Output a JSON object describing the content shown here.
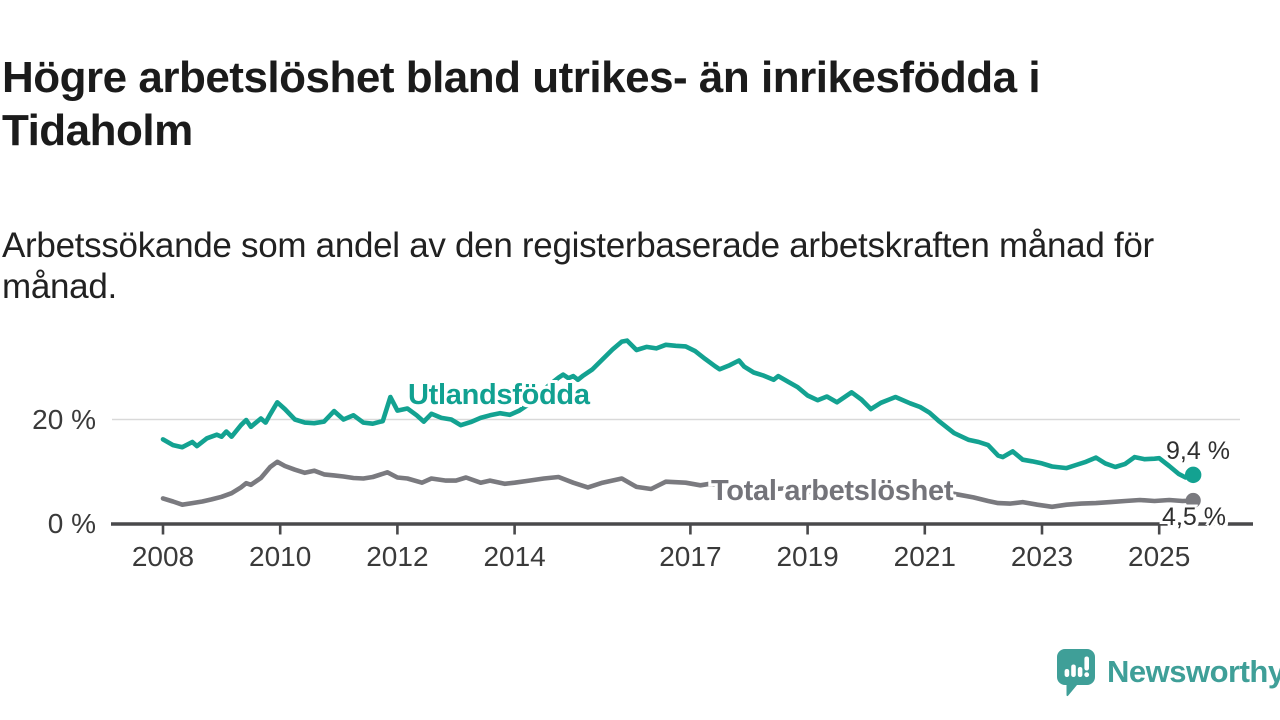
{
  "header": {
    "title": "Högre arbetslöshet bland utrikes- än inrikesfödda i Tidaholm",
    "subtitle": "Arbetssökande som andel av den registerbaserade arbetskraften månad för månad."
  },
  "chart_data": {
    "type": "line",
    "unit": "%",
    "grid": "horizontal line at 20% only",
    "legend_position": "inline labels on lines",
    "x_axis": {
      "ticks": [
        2008,
        2010,
        2012,
        2014,
        2017,
        2019,
        2021,
        2023,
        2025
      ],
      "range": [
        2007.1,
        2026.6
      ]
    },
    "y_axis": {
      "ticks": [
        {
          "value": 0,
          "label": "0 %"
        },
        {
          "value": 20,
          "label": "20 %"
        }
      ],
      "range": [
        0,
        40
      ]
    },
    "axis_color": "#49494b",
    "grid_color": "#d9d9d9",
    "series": [
      {
        "name": "Utlandsfödda",
        "color": "#13a291",
        "end_label": "9,4 %",
        "end_value": 9.4,
        "points": [
          [
            2008.0,
            16.2
          ],
          [
            2008.17,
            15.1
          ],
          [
            2008.33,
            14.7
          ],
          [
            2008.5,
            15.7
          ],
          [
            2008.58,
            14.9
          ],
          [
            2008.75,
            16.4
          ],
          [
            2008.92,
            17.1
          ],
          [
            2009.0,
            16.7
          ],
          [
            2009.08,
            17.7
          ],
          [
            2009.17,
            16.7
          ],
          [
            2009.33,
            18.9
          ],
          [
            2009.42,
            19.9
          ],
          [
            2009.5,
            18.6
          ],
          [
            2009.67,
            20.2
          ],
          [
            2009.75,
            19.4
          ],
          [
            2009.83,
            21.0
          ],
          [
            2009.95,
            23.3
          ],
          [
            2010.08,
            22.0
          ],
          [
            2010.25,
            20.0
          ],
          [
            2010.42,
            19.4
          ],
          [
            2010.58,
            19.3
          ],
          [
            2010.75,
            19.6
          ],
          [
            2010.92,
            21.6
          ],
          [
            2011.08,
            20.0
          ],
          [
            2011.25,
            20.8
          ],
          [
            2011.42,
            19.4
          ],
          [
            2011.58,
            19.2
          ],
          [
            2011.75,
            19.7
          ],
          [
            2011.88,
            24.3
          ],
          [
            2012.0,
            21.7
          ],
          [
            2012.17,
            22.1
          ],
          [
            2012.33,
            20.8
          ],
          [
            2012.45,
            19.6
          ],
          [
            2012.58,
            21.1
          ],
          [
            2012.75,
            20.3
          ],
          [
            2012.92,
            20.0
          ],
          [
            2013.08,
            18.9
          ],
          [
            2013.25,
            19.5
          ],
          [
            2013.42,
            20.3
          ],
          [
            2013.58,
            20.8
          ],
          [
            2013.75,
            21.2
          ],
          [
            2013.92,
            20.9
          ],
          [
            2014.08,
            21.7
          ],
          [
            2014.25,
            23.0
          ],
          [
            2014.42,
            24.8
          ],
          [
            2014.58,
            26.5
          ],
          [
            2014.75,
            28.0
          ],
          [
            2014.83,
            28.6
          ],
          [
            2014.92,
            27.9
          ],
          [
            2015.0,
            28.3
          ],
          [
            2015.08,
            27.6
          ],
          [
            2015.17,
            28.4
          ],
          [
            2015.33,
            29.6
          ],
          [
            2015.5,
            31.5
          ],
          [
            2015.67,
            33.4
          ],
          [
            2015.83,
            34.9
          ],
          [
            2015.92,
            35.1
          ],
          [
            2016.08,
            33.3
          ],
          [
            2016.25,
            33.9
          ],
          [
            2016.42,
            33.6
          ],
          [
            2016.58,
            34.3
          ],
          [
            2016.75,
            34.1
          ],
          [
            2016.92,
            34.0
          ],
          [
            2017.08,
            33.1
          ],
          [
            2017.25,
            31.6
          ],
          [
            2017.42,
            30.2
          ],
          [
            2017.5,
            29.6
          ],
          [
            2017.67,
            30.4
          ],
          [
            2017.83,
            31.3
          ],
          [
            2017.92,
            30.1
          ],
          [
            2018.08,
            29.0
          ],
          [
            2018.25,
            28.4
          ],
          [
            2018.42,
            27.6
          ],
          [
            2018.5,
            28.3
          ],
          [
            2018.67,
            27.2
          ],
          [
            2018.83,
            26.2
          ],
          [
            2019.0,
            24.6
          ],
          [
            2019.17,
            23.7
          ],
          [
            2019.33,
            24.4
          ],
          [
            2019.5,
            23.3
          ],
          [
            2019.75,
            25.2
          ],
          [
            2019.92,
            23.8
          ],
          [
            2020.08,
            22.0
          ],
          [
            2020.25,
            23.2
          ],
          [
            2020.5,
            24.3
          ],
          [
            2020.75,
            23.1
          ],
          [
            2020.92,
            22.4
          ],
          [
            2021.08,
            21.3
          ],
          [
            2021.25,
            19.6
          ],
          [
            2021.5,
            17.4
          ],
          [
            2021.75,
            16.1
          ],
          [
            2021.92,
            15.7
          ],
          [
            2022.08,
            15.1
          ],
          [
            2022.25,
            13.1
          ],
          [
            2022.33,
            12.8
          ],
          [
            2022.5,
            13.9
          ],
          [
            2022.67,
            12.3
          ],
          [
            2022.83,
            12.0
          ],
          [
            2023.0,
            11.6
          ],
          [
            2023.17,
            11.0
          ],
          [
            2023.42,
            10.7
          ],
          [
            2023.58,
            11.3
          ],
          [
            2023.75,
            11.9
          ],
          [
            2023.92,
            12.7
          ],
          [
            2024.08,
            11.6
          ],
          [
            2024.25,
            10.9
          ],
          [
            2024.42,
            11.5
          ],
          [
            2024.58,
            12.8
          ],
          [
            2024.75,
            12.4
          ],
          [
            2024.92,
            12.5
          ],
          [
            2025.0,
            12.6
          ],
          [
            2025.17,
            11.1
          ],
          [
            2025.33,
            9.6
          ],
          [
            2025.45,
            8.9
          ],
          [
            2025.58,
            9.4
          ]
        ]
      },
      {
        "name": "Total arbetslöshet",
        "color": "#7a7a7f",
        "end_label": "4,5 %",
        "end_value": 4.5,
        "points": [
          [
            2008.0,
            4.9
          ],
          [
            2008.17,
            4.3
          ],
          [
            2008.33,
            3.7
          ],
          [
            2008.5,
            4.0
          ],
          [
            2008.67,
            4.3
          ],
          [
            2008.83,
            4.7
          ],
          [
            2009.0,
            5.2
          ],
          [
            2009.17,
            5.9
          ],
          [
            2009.33,
            7.0
          ],
          [
            2009.42,
            7.8
          ],
          [
            2009.5,
            7.5
          ],
          [
            2009.67,
            8.8
          ],
          [
            2009.83,
            10.9
          ],
          [
            2009.95,
            11.9
          ],
          [
            2010.08,
            11.1
          ],
          [
            2010.25,
            10.4
          ],
          [
            2010.42,
            9.8
          ],
          [
            2010.58,
            10.2
          ],
          [
            2010.75,
            9.5
          ],
          [
            2010.92,
            9.3
          ],
          [
            2011.08,
            9.1
          ],
          [
            2011.25,
            8.8
          ],
          [
            2011.42,
            8.7
          ],
          [
            2011.58,
            9.0
          ],
          [
            2011.83,
            9.9
          ],
          [
            2012.0,
            8.9
          ],
          [
            2012.17,
            8.7
          ],
          [
            2012.42,
            7.9
          ],
          [
            2012.58,
            8.7
          ],
          [
            2012.83,
            8.3
          ],
          [
            2013.0,
            8.3
          ],
          [
            2013.17,
            8.9
          ],
          [
            2013.42,
            7.9
          ],
          [
            2013.58,
            8.3
          ],
          [
            2013.83,
            7.7
          ],
          [
            2014.0,
            7.9
          ],
          [
            2014.25,
            8.3
          ],
          [
            2014.5,
            8.7
          ],
          [
            2014.75,
            9.0
          ],
          [
            2015.0,
            7.9
          ],
          [
            2015.25,
            7.0
          ],
          [
            2015.5,
            7.9
          ],
          [
            2015.83,
            8.7
          ],
          [
            2016.08,
            7.1
          ],
          [
            2016.33,
            6.7
          ],
          [
            2016.58,
            8.1
          ],
          [
            2016.92,
            7.9
          ],
          [
            2017.17,
            7.4
          ],
          [
            2017.33,
            7.7
          ],
          [
            2017.58,
            7.2
          ],
          [
            2017.83,
            6.9
          ],
          [
            2018.08,
            7.0
          ],
          [
            2018.33,
            6.6
          ],
          [
            2018.58,
            6.8
          ],
          [
            2018.83,
            6.3
          ],
          [
            2019.08,
            6.1
          ],
          [
            2019.33,
            6.3
          ],
          [
            2019.58,
            5.9
          ],
          [
            2019.83,
            6.1
          ],
          [
            2020.08,
            6.6
          ],
          [
            2020.33,
            7.6
          ],
          [
            2020.58,
            7.2
          ],
          [
            2020.83,
            6.9
          ],
          [
            2021.08,
            6.6
          ],
          [
            2021.33,
            6.1
          ],
          [
            2021.58,
            5.6
          ],
          [
            2021.83,
            5.1
          ],
          [
            2022.08,
            4.4
          ],
          [
            2022.25,
            4.0
          ],
          [
            2022.45,
            3.9
          ],
          [
            2022.67,
            4.2
          ],
          [
            2022.92,
            3.7
          ],
          [
            2023.17,
            3.3
          ],
          [
            2023.42,
            3.7
          ],
          [
            2023.67,
            3.9
          ],
          [
            2023.92,
            4.0
          ],
          [
            2024.17,
            4.2
          ],
          [
            2024.42,
            4.4
          ],
          [
            2024.67,
            4.6
          ],
          [
            2024.92,
            4.4
          ],
          [
            2025.17,
            4.6
          ],
          [
            2025.4,
            4.4
          ],
          [
            2025.58,
            4.5
          ]
        ]
      }
    ]
  },
  "branding": {
    "name": "Newsworthy",
    "color": "#3f9f98"
  }
}
